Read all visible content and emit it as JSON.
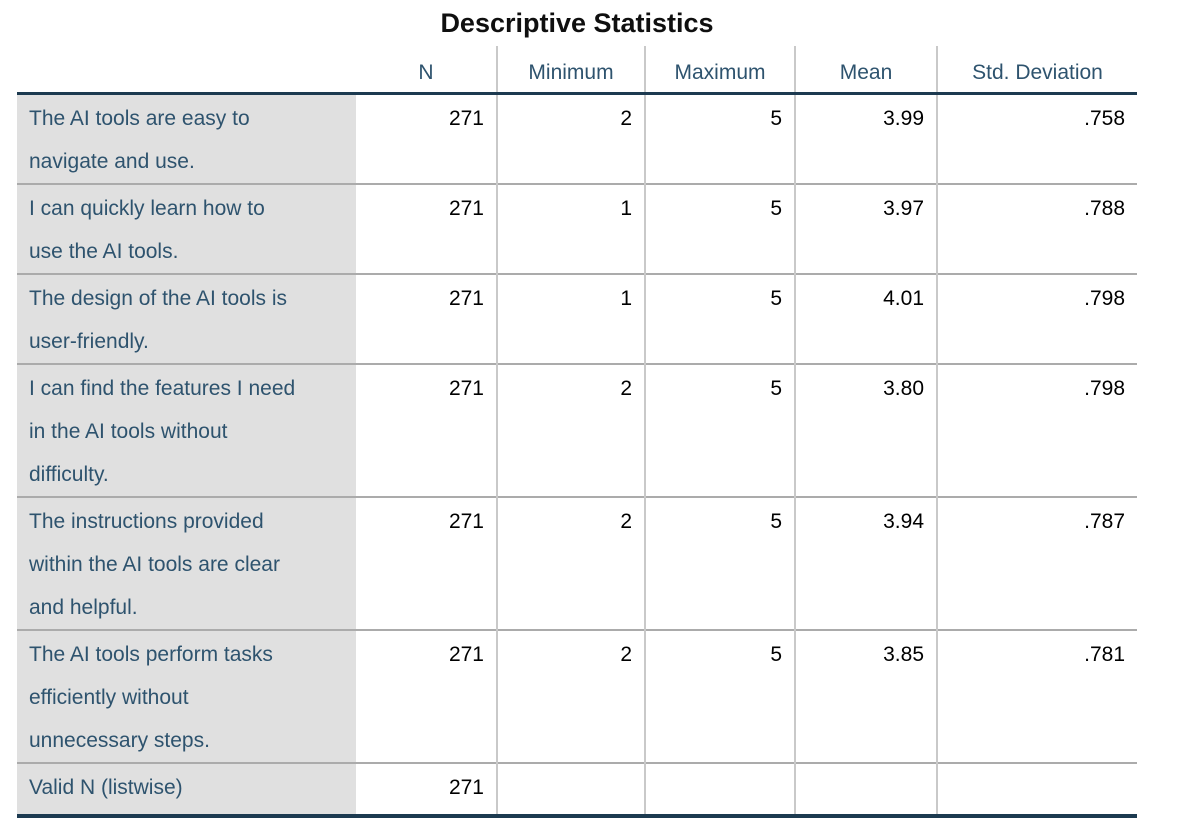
{
  "title": "Descriptive Statistics",
  "table": {
    "columns": [
      "",
      "N",
      "Minimum",
      "Maximum",
      "Mean",
      "Std. Deviation"
    ],
    "rows": [
      {
        "label": "The AI tools are easy to\nnavigate and use.",
        "n": "271",
        "min": "2",
        "max": "5",
        "mean": "3.99",
        "std": ".758"
      },
      {
        "label": "I can quickly learn how to\nuse the AI tools.",
        "n": "271",
        "min": "1",
        "max": "5",
        "mean": "3.97",
        "std": ".788"
      },
      {
        "label": "The design of the AI tools is\nuser-friendly.",
        "n": "271",
        "min": "1",
        "max": "5",
        "mean": "4.01",
        "std": ".798"
      },
      {
        "label": "I can find the features I need\nin the AI tools without\ndifficulty.",
        "n": "271",
        "min": "2",
        "max": "5",
        "mean": "3.80",
        "std": ".798"
      },
      {
        "label": "The instructions provided\nwithin the AI tools are clear\nand helpful.",
        "n": "271",
        "min": "2",
        "max": "5",
        "mean": "3.94",
        "std": ".787"
      },
      {
        "label": "The AI tools perform tasks\nefficiently without\nunnecessary steps.",
        "n": "271",
        "min": "2",
        "max": "5",
        "mean": "3.85",
        "std": ".781"
      },
      {
        "label": "Valid N (listwise)",
        "n": "271",
        "min": "",
        "max": "",
        "mean": "",
        "std": ""
      }
    ]
  },
  "colors": {
    "header_text": "#2E536E",
    "label_text": "#2E536E",
    "label_background": "#E0E0E0",
    "thick_border": "#1C3A50",
    "row_separator": "#ABABAB",
    "column_separator": "#C9C9C9",
    "value_text": "#000000",
    "title_text": "#0F0F0F"
  }
}
